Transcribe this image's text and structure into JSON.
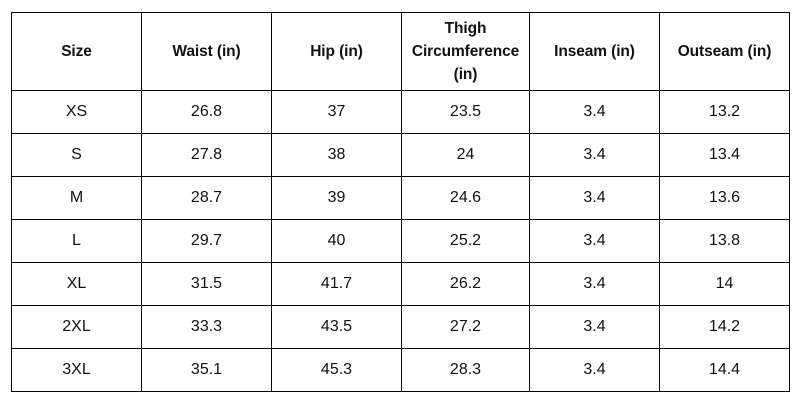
{
  "table": {
    "headers": [
      "Size",
      "Waist (in)",
      "Hip (in)",
      "Thigh Circumference (in)",
      "Inseam (in)",
      "Outseam (in)"
    ],
    "rows": [
      [
        "XS",
        "26.8",
        "37",
        "23.5",
        "3.4",
        "13.2"
      ],
      [
        "S",
        "27.8",
        "38",
        "24",
        "3.4",
        "13.4"
      ],
      [
        "M",
        "28.7",
        "39",
        "24.6",
        "3.4",
        "13.6"
      ],
      [
        "L",
        "29.7",
        "40",
        "25.2",
        "3.4",
        "13.8"
      ],
      [
        "XL",
        "31.5",
        "41.7",
        "26.2",
        "3.4",
        "14"
      ],
      [
        "2XL",
        "33.3",
        "43.5",
        "27.2",
        "3.4",
        "14.2"
      ],
      [
        "3XL",
        "35.1",
        "45.3",
        "28.3",
        "3.4",
        "14.4"
      ]
    ]
  }
}
